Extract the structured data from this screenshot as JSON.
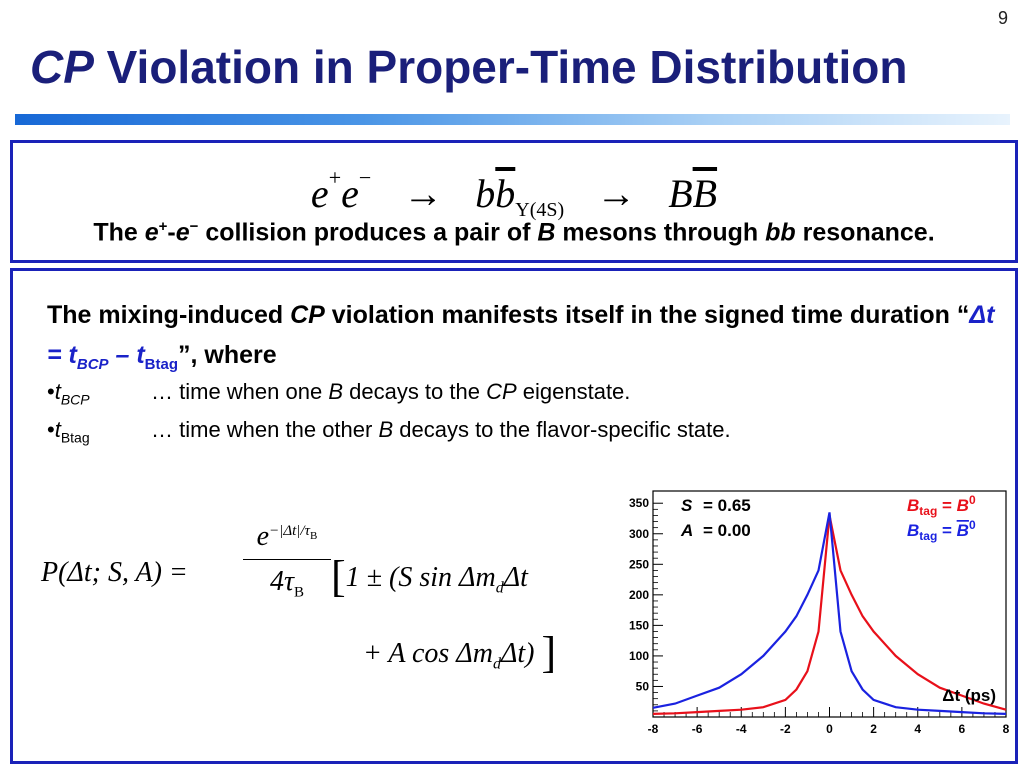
{
  "slide_number": "9",
  "title": {
    "italic": "CP",
    "rest": " Violation in Proper-Time Distribution"
  },
  "reaction": {
    "particle1": "e",
    "sup1": "+",
    "particle2": "e",
    "sup2": "−",
    "arrow": "→",
    "pair_b": "b",
    "pair_bbar": "b",
    "resonance": "Υ(4S)",
    "meson_b": "B",
    "meson_bbar": "B"
  },
  "caption": {
    "t1": "The ",
    "e1": "e",
    "s1": "+",
    "dash": "-",
    "e2": "e",
    "s2": "−",
    "t2": " collision produces a pair of ",
    "B": "B",
    "t3": " mesons through ",
    "bb": "bb",
    "t4": " resonance."
  },
  "paragraph": {
    "t1": "The mixing-induced ",
    "cp": "CP",
    "t2": " violation manifests itself in the signed time duration “",
    "dt": "Δt = t",
    "sub1": "BCP",
    "minus": " – t",
    "sub2": "Btag",
    "t3": "”, where"
  },
  "bullets": [
    {
      "mark": "•",
      "t": "t",
      "sub": "BCP",
      "pre": "… time when one ",
      "B": "B",
      "mid": " decays to the ",
      "cp": "CP",
      "post": " eigenstate."
    },
    {
      "mark": "•",
      "t": "t",
      "sub": "Btag",
      "pre": "… time when the other ",
      "B": "B",
      "mid": " decays to the flavor-specific state."
    }
  ],
  "formula": {
    "lhs": "P(Δt; S, A) =",
    "num_base": "e",
    "num_sup": "−|Δt|/τ",
    "num_sup_sub": "B",
    "den": "4τ",
    "den_sub": "B",
    "r1_open": "[",
    "r1": "1 ± (S sin Δm",
    "r1_sub": "d",
    "r1_end": "Δt",
    "r2": "+ A cos Δm",
    "r2_sub": "d",
    "r2_end": "Δt) ",
    "r2_close": "]"
  },
  "chart_data": {
    "type": "line",
    "x_ticks": [
      "-8",
      "-6",
      "-4",
      "-2",
      "0",
      "2",
      "4",
      "6",
      "8"
    ],
    "y_ticks": [
      "50",
      "100",
      "150",
      "200",
      "250",
      "300",
      "350"
    ],
    "xlim": [
      -8,
      8
    ],
    "ylim": [
      0,
      370
    ],
    "xlabel": "Δt (ps)",
    "params": [
      {
        "name": "S",
        "value": "= 0.65"
      },
      {
        "name": "A",
        "value": "= 0.00"
      }
    ],
    "legend": [
      {
        "label_b": "B",
        "label_sub": "tag",
        "label_eq": " = ",
        "label_val": "B",
        "label_sup": "0",
        "color": "#e8101a"
      },
      {
        "label_b": "B",
        "label_sub": "tag",
        "label_eq": " = ",
        "label_val": "B",
        "label_sup": "0",
        "overline": true,
        "color": "#1a22e0"
      }
    ],
    "series": [
      {
        "color": "#e8101a",
        "x": [
          -8,
          -7,
          -6,
          -5,
          -4,
          -3,
          -2,
          -1.5,
          -1,
          -0.5,
          0,
          0.5,
          1,
          1.5,
          2,
          3,
          4,
          5,
          6,
          7,
          8
        ],
        "y": [
          5,
          6,
          8,
          10,
          12,
          16,
          28,
          45,
          75,
          140,
          330,
          240,
          200,
          165,
          140,
          100,
          70,
          48,
          35,
          22,
          12
        ]
      },
      {
        "color": "#1a22e0",
        "x": [
          -8,
          -7,
          -6,
          -5,
          -4,
          -3,
          -2,
          -1.5,
          -1,
          -0.5,
          0,
          0.5,
          1,
          1.5,
          2,
          3,
          4,
          5,
          6,
          7,
          8
        ],
        "y": [
          15,
          22,
          35,
          48,
          70,
          100,
          140,
          165,
          200,
          240,
          335,
          140,
          75,
          45,
          28,
          16,
          12,
          10,
          8,
          6,
          5
        ]
      }
    ]
  }
}
